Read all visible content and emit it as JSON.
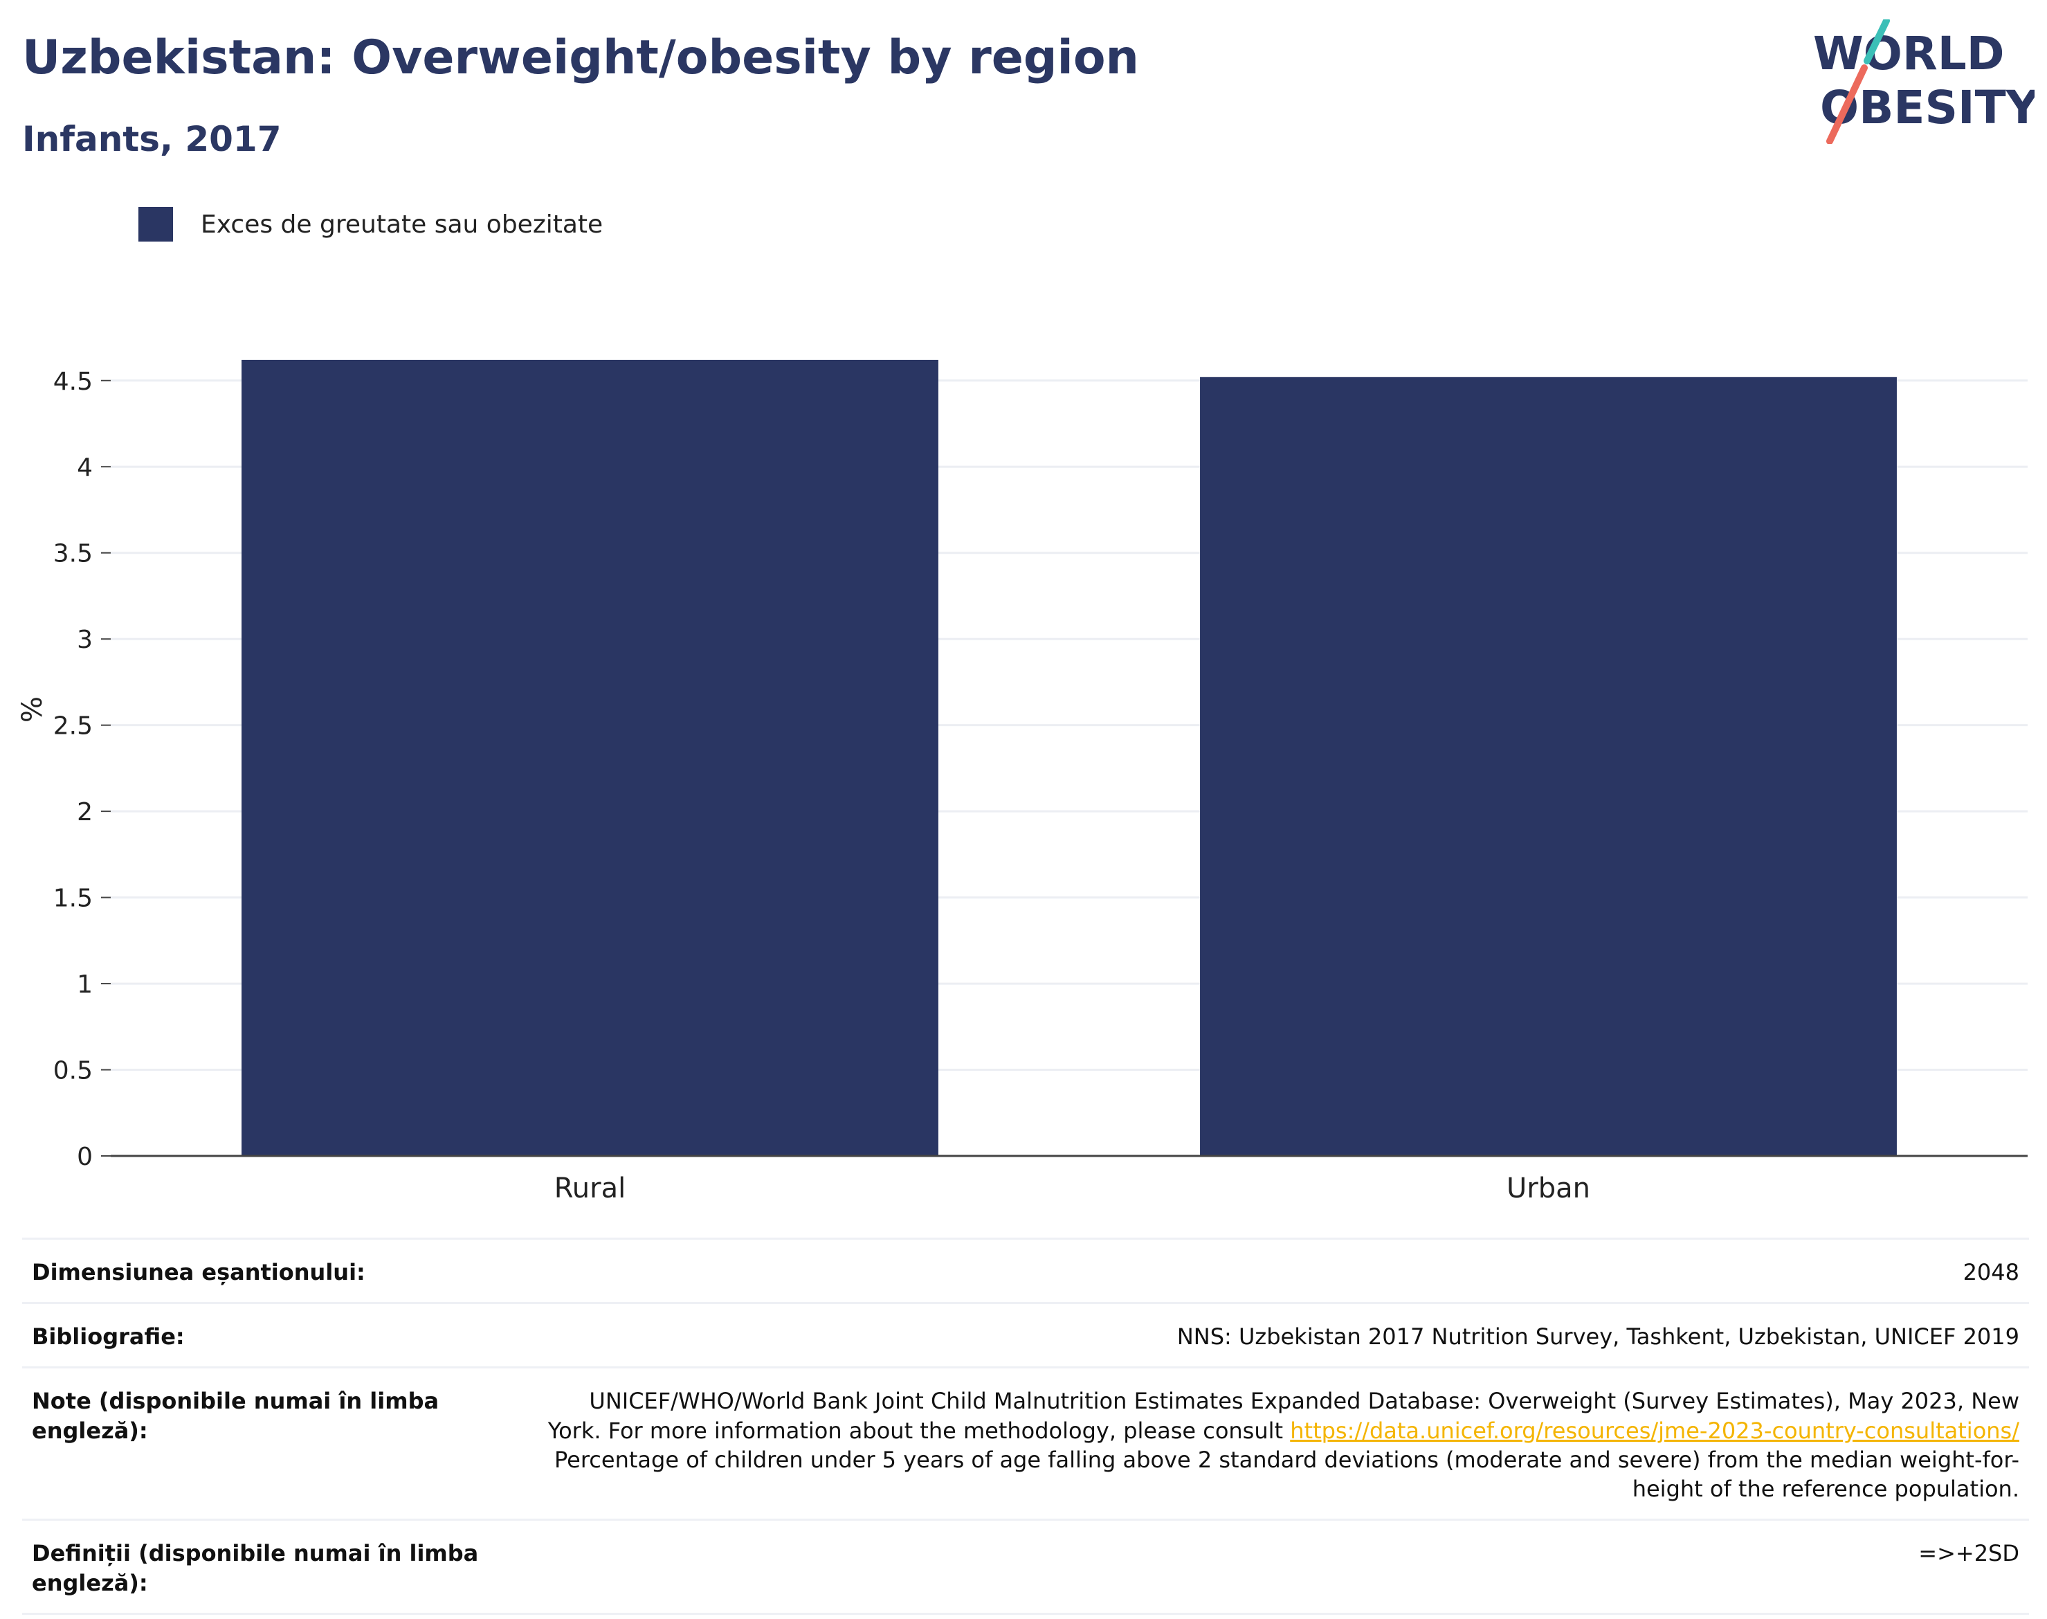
{
  "title": "Uzbekistan: Overweight/obesity by region",
  "subtitle": "Infants, 2017",
  "logo": {
    "line1": "WORLD",
    "line2": "OBESITY",
    "colors": {
      "text": "#2b3763",
      "slash_top": "#3bbfb7",
      "slash_bottom": "#ec6a5c"
    }
  },
  "legend": {
    "label": "Exces de greutate sau obezitate",
    "color": "#2a3663"
  },
  "chart_data": {
    "type": "bar",
    "categories": [
      "Rural",
      "Urban"
    ],
    "series": [
      {
        "name": "Exces de greutate sau obezitate",
        "values": [
          4.62,
          4.52
        ]
      }
    ],
    "ylabel": "%",
    "ylim": [
      0,
      4.7
    ],
    "yticks": [
      0,
      0.5,
      1,
      1.5,
      2,
      2.5,
      3,
      3.5,
      4,
      4.5
    ],
    "ytick_labels": [
      "0",
      "0.5",
      "1",
      "1.5",
      "2",
      "2.5",
      "3",
      "3.5",
      "4",
      "4.5"
    ],
    "grid": true,
    "legend_position": "top-left",
    "bar_color": "#2a3663"
  },
  "meta": {
    "sample_size": {
      "label": "Dimensiunea eșantionului:",
      "value": "2048"
    },
    "bibliography": {
      "label": "Bibliografie:",
      "value": "NNS: Uzbekistan 2017 Nutrition Survey, Tashkent, Uzbekistan, UNICEF 2019"
    },
    "notes": {
      "label": "Note (disponibile numai în limba engleză):",
      "text_before": "UNICEF/WHO/World Bank Joint Child Malnutrition Estimates Expanded Database: Overweight (Survey Estimates), May 2023, New York. For more information about the methodology, please consult ",
      "link": "https://data.unicef.org/resources/jme-2023-country-consultations/",
      "text_after": "Percentage of children under 5 years of age falling above 2 standard deviations (moderate and severe) from the median weight-for-height of the reference population."
    },
    "definitions": {
      "label": "Definiții (disponibile numai în limba engleză):",
      "value": "=>+2SD"
    }
  }
}
